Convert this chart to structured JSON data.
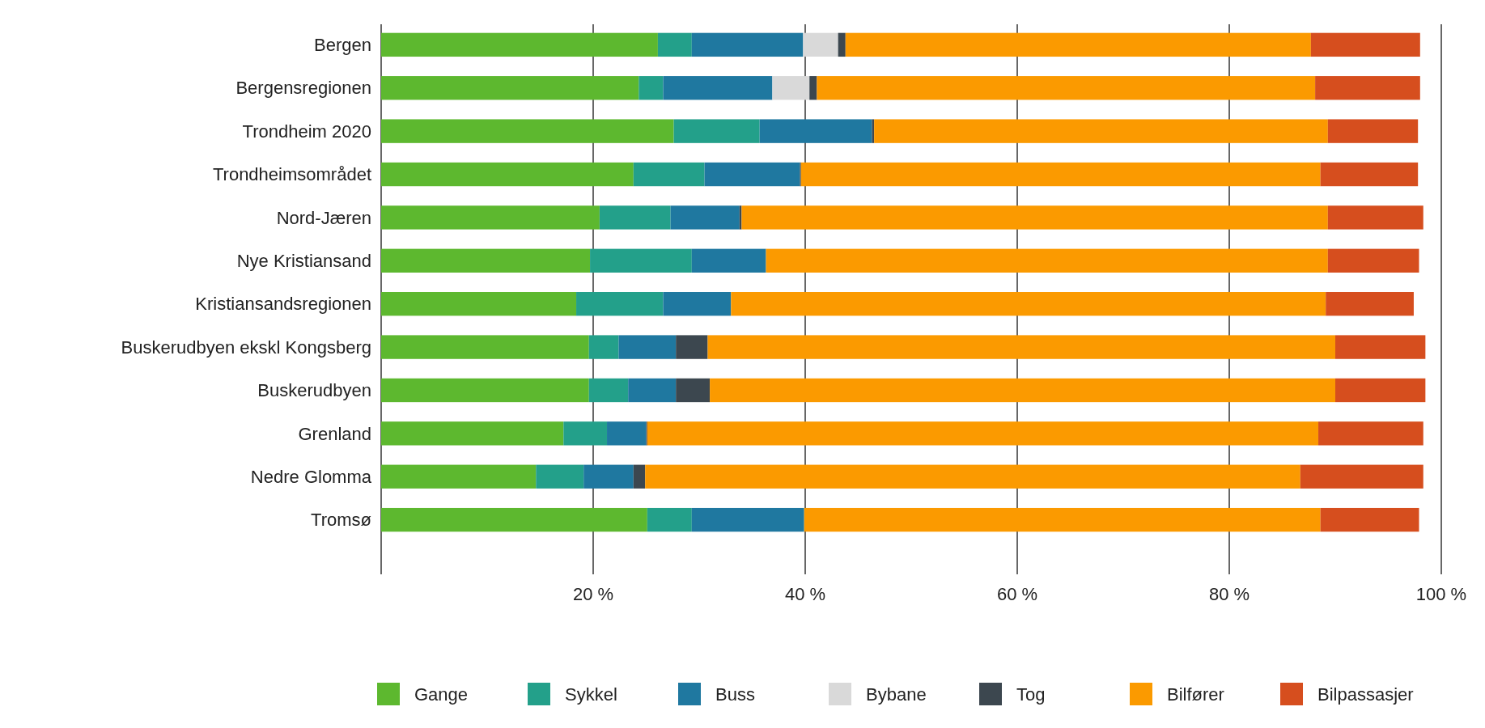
{
  "chart_data": {
    "type": "bar",
    "orientation": "horizontal",
    "stacked": true,
    "grid": "x",
    "legend": "bottom",
    "categories": [
      "Bergen",
      "Bergensregionen",
      "Trondheim 2020",
      "Trondheimsområdet",
      "Nord-Jæren",
      "Nye Kristiansand",
      "Kristiansandsregionen",
      "Buskerudbyen ekskl Kongsberg",
      "Buskerudbyen",
      "Grenland",
      "Nedre Glomma",
      "Tromsø"
    ],
    "xlim": [
      0,
      100
    ],
    "xticks": [
      {
        "value": 0,
        "label": null
      },
      {
        "value": 20,
        "label": "20 %"
      },
      {
        "value": 40,
        "label": "40 %"
      },
      {
        "value": 60,
        "label": "60 %"
      },
      {
        "value": 80,
        "label": "80 %"
      },
      {
        "value": 100,
        "label": "100 %"
      }
    ],
    "series": [
      {
        "name": "Gange",
        "color": "#5db82f",
        "values": [
          26.1,
          24.3,
          27.6,
          23.8,
          20.6,
          19.7,
          18.4,
          19.6,
          19.6,
          17.2,
          14.6,
          25.1
        ]
      },
      {
        "name": "Sykkel",
        "color": "#23a08a",
        "values": [
          3.2,
          2.3,
          8.1,
          6.7,
          6.7,
          9.6,
          8.2,
          2.8,
          3.7,
          4.1,
          4.5,
          4.2
        ]
      },
      {
        "name": "Buss",
        "color": "#1f78a0",
        "values": [
          10.5,
          10.3,
          10.6,
          9.0,
          6.5,
          7.0,
          6.4,
          5.4,
          4.5,
          3.7,
          4.7,
          10.6
        ]
      },
      {
        "name": "Bybane",
        "color": "#d9d9d9",
        "values": [
          3.3,
          3.5,
          0,
          0,
          0,
          0,
          0,
          0,
          0,
          0,
          0,
          0
        ]
      },
      {
        "name": "Tog",
        "color": "#3c474f",
        "values": [
          0.7,
          0.7,
          0.2,
          0.1,
          0.2,
          0,
          0,
          3.0,
          3.2,
          0.1,
          1.1,
          0
        ]
      },
      {
        "name": "Bilfører",
        "color": "#fb9a00",
        "values": [
          43.9,
          47.0,
          42.8,
          49.0,
          55.3,
          53.0,
          56.1,
          59.2,
          59.0,
          63.3,
          61.8,
          48.7
        ]
      },
      {
        "name": "Bilpassasjer",
        "color": "#d64e1e",
        "values": [
          10.3,
          9.9,
          8.5,
          9.2,
          9.0,
          8.6,
          8.3,
          8.5,
          8.5,
          9.9,
          11.6,
          9.3
        ]
      }
    ]
  }
}
